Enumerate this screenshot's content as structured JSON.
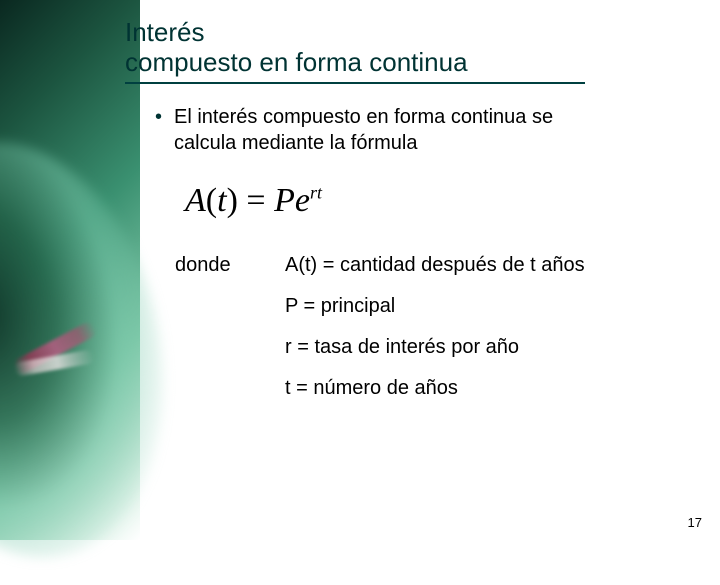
{
  "colors": {
    "title_color": "#003333",
    "rule_color": "#004040",
    "text_color": "#000000",
    "bg_gradient_stops": [
      "#0a2820",
      "#1c5540",
      "#3a9070",
      "#7fc8a8",
      "#d8f0e4",
      "#ffffff"
    ],
    "chalk_pink": "#be285a"
  },
  "typography": {
    "title_fontsize": 26,
    "body_fontsize": 20,
    "formula_fontsize": 34,
    "formula_font": "Times New Roman",
    "pagenum_fontsize": 13
  },
  "title_line1": "Interés",
  "title_line2": "compuesto en forma continua",
  "bullet_text": "El interés compuesto en forma continua se calcula mediante la fórmula",
  "formula": {
    "A_label": "A",
    "arg": "t",
    "P_label": "P",
    "e_label": "e",
    "exp": "rt"
  },
  "defs": {
    "donde_label": "donde",
    "items": [
      "A(t) = cantidad después de t años",
      "P = principal",
      "r = tasa de interés por año",
      "t = número de años"
    ]
  },
  "page_number": "17"
}
